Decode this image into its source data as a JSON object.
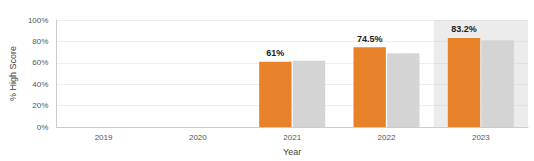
{
  "chart_data": {
    "type": "bar",
    "x_label": "Year",
    "y_label": "% High Score",
    "categories": [
      "2019",
      "2020",
      "2021",
      "2022",
      "2023"
    ],
    "series": [
      {
        "color": "#e8822a",
        "values": [
          null,
          null,
          61,
          74.5,
          83.2
        ],
        "data_labels": true,
        "value_labels": [
          null,
          null,
          "61%",
          "74.5%",
          "83.2%"
        ]
      },
      {
        "color": "#d4d4d4",
        "values": [
          null,
          null,
          62,
          69,
          81
        ]
      }
    ],
    "ylim": [
      0,
      100
    ],
    "yticks": [
      {
        "value": 0,
        "label": "0%"
      },
      {
        "value": 20,
        "label": "20%"
      },
      {
        "value": 40,
        "label": "40%"
      },
      {
        "value": 60,
        "label": "60%"
      },
      {
        "value": 80,
        "label": "80%"
      },
      {
        "value": 100,
        "label": "100%"
      }
    ],
    "grid": true
  }
}
